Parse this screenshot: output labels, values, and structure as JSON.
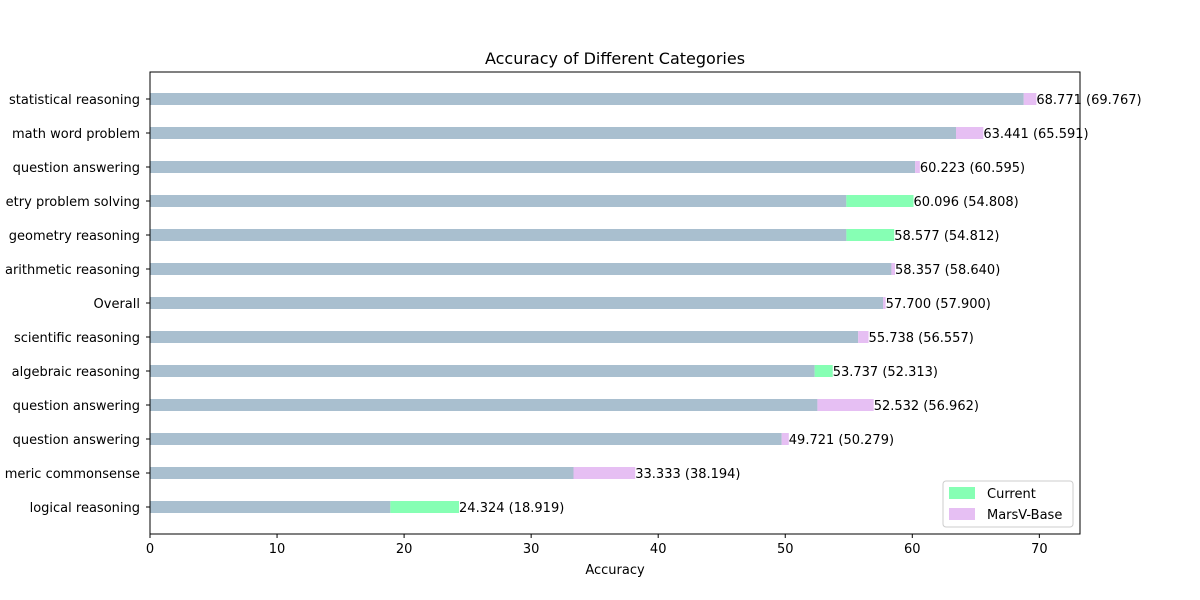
{
  "chart_data": {
    "type": "bar",
    "orientation": "horizontal",
    "title": "Accuracy of Different Categories",
    "xlabel": "Accuracy",
    "ylabel": "",
    "xlim": [
      0,
      73.2
    ],
    "xticks": [
      0,
      10,
      20,
      30,
      40,
      50,
      60,
      70
    ],
    "grid": false,
    "legend_position": "lower-right",
    "colors": {
      "base": "#a9bfcf",
      "current": "#86ffb4",
      "marsv": "#e6bff3"
    },
    "legend": [
      {
        "name": "Current",
        "color": "#86ffb4"
      },
      {
        "name": "MarsV-Base",
        "color": "#e6bff3"
      }
    ],
    "categories": [
      "statistical reasoning",
      "math word problem",
      "question answering",
      "etry problem solving",
      "geometry reasoning",
      "arithmetic reasoning",
      "Overall",
      "scientific reasoning",
      "algebraic reasoning",
      "question answering",
      "question answering",
      "meric commonsense",
      "logical reasoning"
    ],
    "series": [
      {
        "name": "Current",
        "values": [
          68.771,
          63.441,
          60.223,
          60.096,
          58.577,
          58.357,
          57.7,
          55.738,
          53.737,
          52.532,
          49.721,
          33.333,
          24.324
        ]
      },
      {
        "name": "MarsV-Base",
        "values": [
          69.767,
          65.591,
          60.595,
          54.808,
          54.812,
          58.64,
          57.9,
          56.557,
          52.313,
          56.962,
          50.279,
          38.194,
          18.919
        ]
      }
    ],
    "data_labels": [
      "68.771 (69.767)",
      "63.441 (65.591)",
      "60.223 (60.595)",
      "60.096 (54.808)",
      "58.577 (54.812)",
      "58.357 (58.640)",
      "57.700 (57.900)",
      "55.738 (56.557)",
      "53.737 (52.313)",
      "52.532 (56.962)",
      "49.721 (50.279)",
      "33.333 (38.194)",
      "24.324 (18.919)"
    ]
  }
}
